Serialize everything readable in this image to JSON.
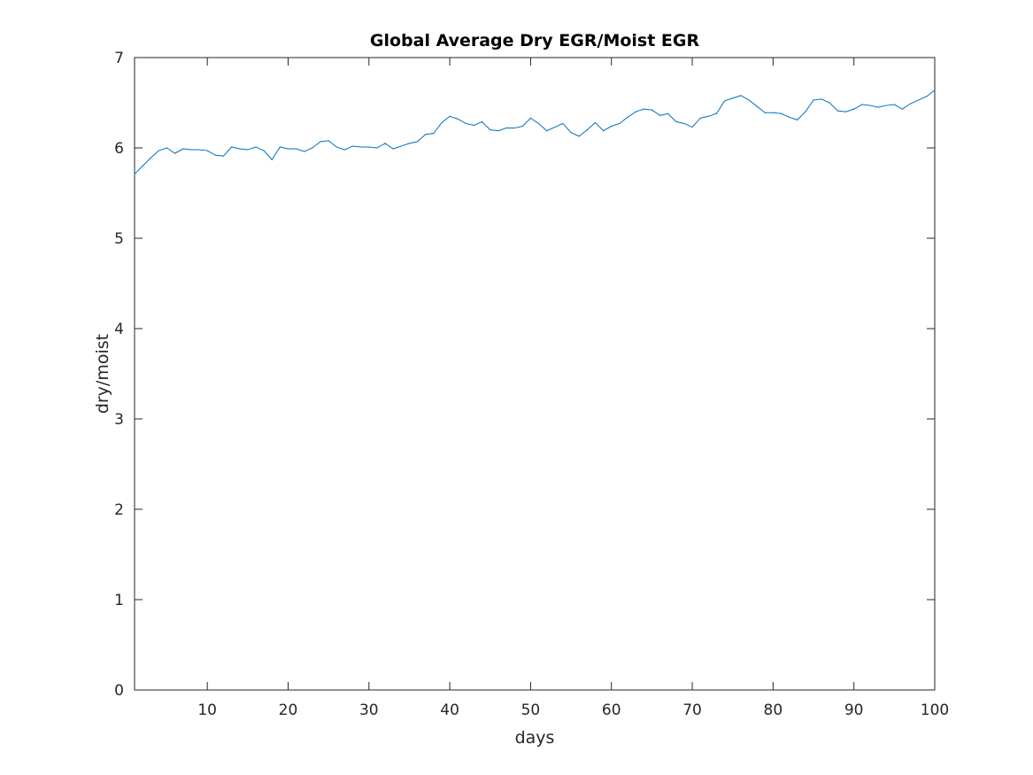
{
  "chart_data": {
    "type": "line",
    "title": "Global Average Dry EGR/Moist EGR",
    "xlabel": "days",
    "ylabel": "dry/moist",
    "xlim": [
      1,
      100
    ],
    "ylim": [
      0,
      7
    ],
    "xticks": [
      10,
      20,
      30,
      40,
      50,
      60,
      70,
      80,
      90,
      100
    ],
    "yticks": [
      0,
      1,
      2,
      3,
      4,
      5,
      6,
      7
    ],
    "grid": false,
    "line_color": "#0072BD",
    "axis_color": "#262626",
    "series": [
      {
        "x": [
          1,
          2,
          3,
          4,
          5,
          6,
          7,
          8,
          9,
          10,
          11,
          12,
          13,
          14,
          15,
          16,
          17,
          18,
          19,
          20,
          21,
          22,
          23,
          24,
          25,
          26,
          27,
          28,
          29,
          30,
          31,
          32,
          33,
          34,
          35,
          36,
          37,
          38,
          39,
          40,
          41,
          42,
          43,
          44,
          45,
          46,
          47,
          48,
          49,
          50,
          51,
          52,
          53,
          54,
          55,
          56,
          57,
          58,
          59,
          60,
          61,
          62,
          63,
          64,
          65,
          66,
          67,
          68,
          69,
          70,
          71,
          72,
          73,
          74,
          75,
          76,
          77,
          78,
          79,
          80,
          81,
          82,
          83,
          84,
          85,
          86,
          87,
          88,
          89,
          90,
          91,
          92,
          93,
          94,
          95,
          96,
          97,
          98,
          99,
          100
        ],
        "values": [
          5.71,
          5.8,
          5.89,
          5.97,
          6.0,
          5.94,
          5.99,
          5.98,
          5.98,
          5.97,
          5.92,
          5.91,
          6.01,
          5.99,
          5.98,
          6.01,
          5.97,
          5.87,
          6.01,
          5.99,
          5.99,
          5.96,
          6.0,
          6.07,
          6.08,
          6.01,
          5.98,
          6.02,
          6.01,
          6.01,
          6.0,
          6.05,
          5.99,
          6.02,
          6.05,
          6.07,
          6.15,
          6.16,
          6.28,
          6.35,
          6.32,
          6.27,
          6.25,
          6.29,
          6.2,
          6.19,
          6.22,
          6.22,
          6.24,
          6.33,
          6.27,
          6.19,
          6.23,
          6.27,
          6.17,
          6.13,
          6.2,
          6.28,
          6.19,
          6.24,
          6.27,
          6.34,
          6.4,
          6.43,
          6.42,
          6.36,
          6.38,
          6.29,
          6.27,
          6.23,
          6.33,
          6.35,
          6.38,
          6.52,
          6.55,
          6.58,
          6.53,
          6.46,
          6.39,
          6.39,
          6.38,
          6.34,
          6.31,
          6.4,
          6.53,
          6.54,
          6.5,
          6.41,
          6.4,
          6.43,
          6.48,
          6.47,
          6.45,
          6.47,
          6.48,
          6.43,
          6.49,
          6.53,
          6.57,
          6.64
        ]
      }
    ]
  }
}
